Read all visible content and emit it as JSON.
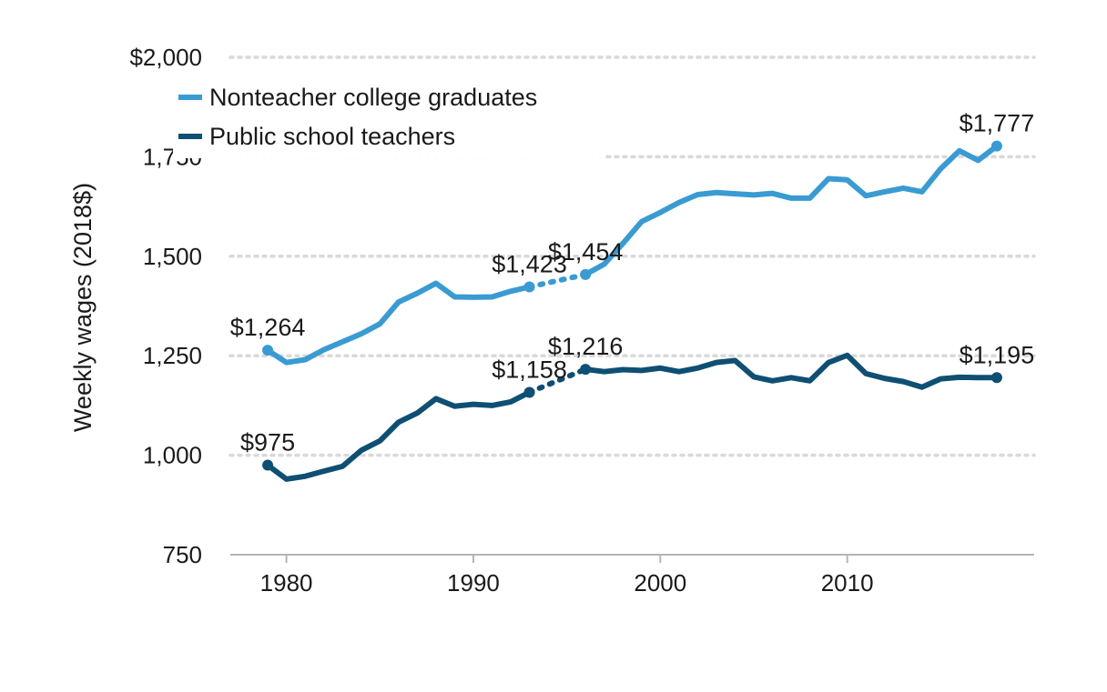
{
  "chart_data": {
    "type": "line",
    "title": "",
    "xlabel": "",
    "ylabel": "Weekly wages (2018$)",
    "xlim": [
      1977,
      2020
    ],
    "ylim": [
      750,
      2000
    ],
    "x_ticks": [
      1980,
      1990,
      2000,
      2010
    ],
    "y_ticks": [
      {
        "value": 750,
        "label": "750"
      },
      {
        "value": 1000,
        "label": "1,000"
      },
      {
        "value": 1250,
        "label": "1,250"
      },
      {
        "value": 1500,
        "label": "1,500"
      },
      {
        "value": 1750,
        "label": "1,750"
      },
      {
        "value": 2000,
        "label": "$2,000"
      }
    ],
    "grid": "horizontal dotted",
    "legend_position": "top-left",
    "series": [
      {
        "name": "Nonteacher college graduates",
        "color": "#3a9bd2",
        "segments": [
          {
            "style": "solid",
            "x": [
              1979,
              1980,
              1981,
              1982,
              1983,
              1984,
              1985,
              1986,
              1987,
              1988,
              1989,
              1990,
              1991,
              1992,
              1993
            ],
            "y": [
              1264,
              1233,
              1240,
              1265,
              1285,
              1305,
              1330,
              1385,
              1407,
              1432,
              1398,
              1397,
              1398,
              1412,
              1423
            ]
          },
          {
            "style": "dotted",
            "x": [
              1993,
              1996
            ],
            "y": [
              1423,
              1454
            ]
          },
          {
            "style": "solid",
            "x": [
              1996,
              1997,
              1998,
              1999,
              2000,
              2001,
              2002,
              2003,
              2004,
              2005,
              2006,
              2007,
              2008,
              2009,
              2010,
              2011,
              2012,
              2013,
              2014,
              2015,
              2016,
              2017,
              2018
            ],
            "y": [
              1454,
              1480,
              1532,
              1587,
              1610,
              1635,
              1655,
              1660,
              1657,
              1654,
              1658,
              1646,
              1646,
              1695,
              1692,
              1652,
              1662,
              1671,
              1662,
              1720,
              1765,
              1741,
              1777
            ]
          }
        ],
        "markers": [
          {
            "x": 1979,
            "y": 1264,
            "label": "$1,264"
          },
          {
            "x": 1993,
            "y": 1423,
            "label": "$1,423"
          },
          {
            "x": 1996,
            "y": 1454,
            "label": "$1,454"
          },
          {
            "x": 2018,
            "y": 1777,
            "label": "$1,777"
          }
        ]
      },
      {
        "name": "Public school teachers",
        "color": "#0e4f73",
        "segments": [
          {
            "style": "solid",
            "x": [
              1979,
              1980,
              1981,
              1982,
              1983,
              1984,
              1985,
              1986,
              1987,
              1988,
              1989,
              1990,
              1991,
              1992,
              1993
            ],
            "y": [
              975,
              940,
              947,
              960,
              972,
              1012,
              1036,
              1083,
              1106,
              1142,
              1123,
              1128,
              1125,
              1134,
              1158
            ]
          },
          {
            "style": "dotted",
            "x": [
              1993,
              1996
            ],
            "y": [
              1158,
              1216
            ]
          },
          {
            "style": "solid",
            "x": [
              1996,
              1997,
              1998,
              1999,
              2000,
              2001,
              2002,
              2003,
              2004,
              2005,
              2006,
              2007,
              2008,
              2009,
              2010,
              2011,
              2012,
              2013,
              2014,
              2015,
              2016,
              2017,
              2018
            ],
            "y": [
              1216,
              1210,
              1215,
              1213,
              1219,
              1210,
              1219,
              1233,
              1238,
              1197,
              1187,
              1195,
              1187,
              1233,
              1251,
              1205,
              1193,
              1185,
              1171,
              1192,
              1196,
              1195,
              1195
            ]
          }
        ],
        "markers": [
          {
            "x": 1979,
            "y": 975,
            "label": "$975"
          },
          {
            "x": 1993,
            "y": 1158,
            "label": "$1,158"
          },
          {
            "x": 1996,
            "y": 1216,
            "label": "$1,216"
          },
          {
            "x": 2018,
            "y": 1195,
            "label": "$1,195"
          }
        ]
      }
    ]
  }
}
